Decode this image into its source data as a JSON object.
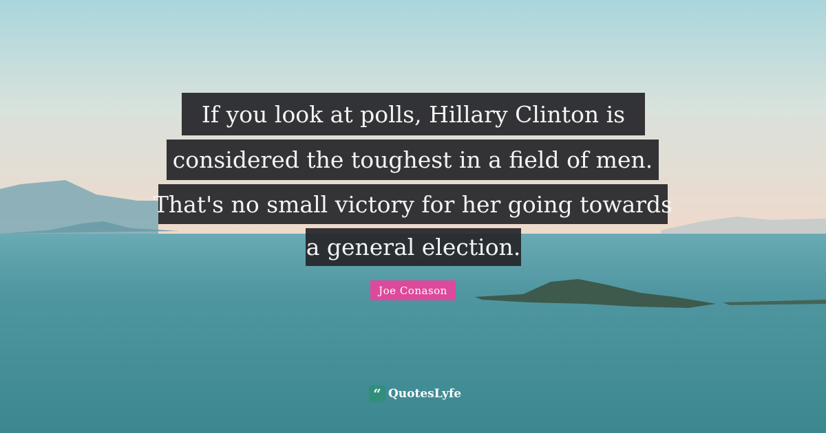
{
  "quote": {
    "lines": [
      "If you look at polls, Hillary Clinton is",
      "considered the toughest in a field of men.",
      "That's no small victory for her going towards",
      "a general election."
    ],
    "author": "Joe Conason"
  },
  "brand": {
    "name": "QuotesLyfe",
    "icon": "quote-mark-icon",
    "color": "#2f8f7a"
  },
  "colors": {
    "author_badge": "#dd4a9b",
    "text_box": "#26262a"
  }
}
